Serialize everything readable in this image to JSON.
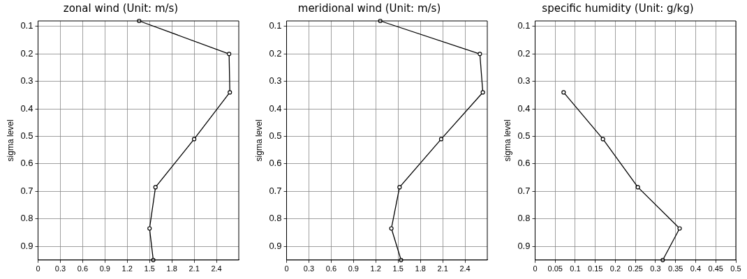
{
  "chart_data": [
    {
      "type": "line",
      "title": "zonal wind (Unit: m/s)",
      "ylabel": "sigma level",
      "marker": "circle",
      "line_style": "solid",
      "grid": true,
      "legend": false,
      "series": [
        {
          "color": "#000000",
          "x": [
            1.36,
            2.57,
            2.58,
            2.1,
            1.58,
            1.5,
            1.55
          ],
          "values": [
            0.08,
            0.2,
            0.34,
            0.51,
            0.685,
            0.835,
            0.95
          ]
        }
      ],
      "xlim": [
        0,
        2.7
      ],
      "xticks": [
        0,
        0.3,
        0.6,
        0.9,
        1.2,
        1.5,
        1.8,
        2.1,
        2.4
      ],
      "ylim": [
        0.95,
        0.08
      ],
      "yticks": [
        0.1,
        0.2,
        0.3,
        0.4,
        0.5,
        0.6,
        0.7,
        0.8,
        0.9
      ]
    },
    {
      "type": "line",
      "title": "meridional wind (Unit: m/s)",
      "ylabel": "sigma level",
      "marker": "circle",
      "line_style": "solid",
      "grid": true,
      "legend": false,
      "series": [
        {
          "color": "#000000",
          "x": [
            1.26,
            2.6,
            2.64,
            2.08,
            1.52,
            1.41,
            1.54
          ],
          "values": [
            0.08,
            0.2,
            0.34,
            0.51,
            0.685,
            0.835,
            0.95
          ]
        }
      ],
      "xlim": [
        0,
        2.7
      ],
      "xticks": [
        0,
        0.3,
        0.6,
        0.9,
        1.2,
        1.5,
        1.8,
        2.1,
        2.4
      ],
      "ylim": [
        0.95,
        0.08
      ],
      "yticks": [
        0.1,
        0.2,
        0.3,
        0.4,
        0.5,
        0.6,
        0.7,
        0.8,
        0.9
      ]
    },
    {
      "type": "line",
      "title": "specific humidity (Unit: g/kg)",
      "ylabel": "sigma level",
      "marker": "circle",
      "line_style": "solid",
      "grid": true,
      "legend": false,
      "series": [
        {
          "color": "#000000",
          "x": [
            0.071,
            0.169,
            0.256,
            0.36,
            0.318
          ],
          "values": [
            0.34,
            0.51,
            0.685,
            0.835,
            0.95
          ]
        }
      ],
      "xlim": [
        0,
        0.5
      ],
      "xticks": [
        0,
        0.05,
        0.1,
        0.15,
        0.2,
        0.25,
        0.3,
        0.35,
        0.4,
        0.45,
        0.5
      ],
      "ylim": [
        0.95,
        0.08
      ],
      "yticks": [
        0.1,
        0.2,
        0.3,
        0.4,
        0.5,
        0.6,
        0.7,
        0.8,
        0.9
      ]
    }
  ]
}
